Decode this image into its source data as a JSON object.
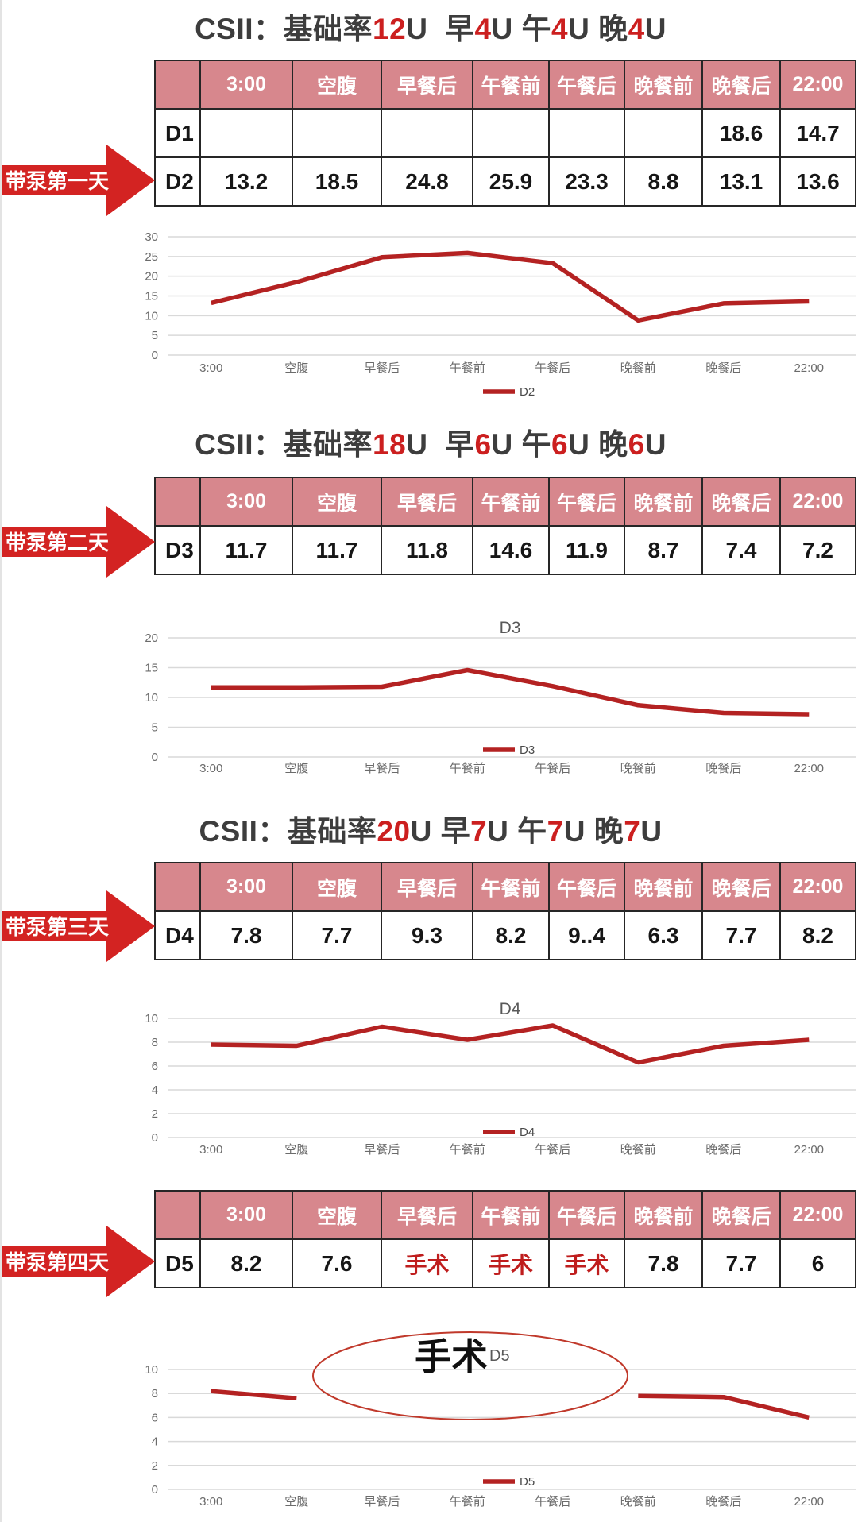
{
  "colors": {
    "accent_red": "#cc1f1f",
    "arrow_red": "#d32322",
    "header_pink": "#d7878d",
    "table_border": "#262626",
    "line_red": "#b42222",
    "surgery_red": "#bf1d1d",
    "grid_gray": "#d9d9d9",
    "tick_gray": "#6b6b6b",
    "chart_title_gray": "#595959",
    "oval_red": "#c0392b",
    "title_dark": "#3d3d3d"
  },
  "arrows": [
    {
      "label": "带泵第一天"
    },
    {
      "label": "带泵第二天"
    },
    {
      "label": "带泵第三天"
    },
    {
      "label": "带泵第四天"
    }
  ],
  "sections": [
    {
      "title_parts": [
        {
          "t": "CSII：基础率"
        },
        {
          "t": "12",
          "red": true
        },
        {
          "t": "U  早"
        },
        {
          "t": "4",
          "red": true
        },
        {
          "t": "U 午"
        },
        {
          "t": "4",
          "red": true
        },
        {
          "t": "U 晚"
        },
        {
          "t": "4",
          "red": true
        },
        {
          "t": "U"
        }
      ],
      "table": {
        "headers": [
          "",
          "3:00",
          "空腹",
          "早餐后",
          "午餐前",
          "午餐后",
          "晚餐前",
          "晚餐后",
          "22:00"
        ],
        "rows": [
          {
            "label": "D1",
            "values": [
              "",
              "",
              "",
              "",
              "",
              "",
              "18.6",
              "14.7"
            ],
            "red_indices": []
          },
          {
            "label": "D2",
            "values": [
              "13.2",
              "18.5",
              "24.8",
              "25.9",
              "23.3",
              "8.8",
              "13.1",
              "13.6"
            ],
            "red_indices": []
          }
        ]
      }
    },
    {
      "title_parts": [
        {
          "t": "CSII：基础率"
        },
        {
          "t": "18",
          "red": true
        },
        {
          "t": "U  早"
        },
        {
          "t": "6",
          "red": true
        },
        {
          "t": "U 午"
        },
        {
          "t": "6",
          "red": true
        },
        {
          "t": "U 晚"
        },
        {
          "t": "6",
          "red": true
        },
        {
          "t": "U"
        }
      ],
      "table": {
        "headers": [
          "",
          "3:00",
          "空腹",
          "早餐后",
          "午餐前",
          "午餐后",
          "晚餐前",
          "晚餐后",
          "22:00"
        ],
        "rows": [
          {
            "label": "D3",
            "values": [
              "11.7",
              "11.7",
              "11.8",
              "14.6",
              "11.9",
              "8.7",
              "7.4",
              "7.2"
            ],
            "red_indices": []
          }
        ]
      }
    },
    {
      "title_parts": [
        {
          "t": "CSII：基础率"
        },
        {
          "t": "20",
          "red": true
        },
        {
          "t": "U 早"
        },
        {
          "t": "7",
          "red": true
        },
        {
          "t": "U 午"
        },
        {
          "t": "7",
          "red": true
        },
        {
          "t": "U 晚"
        },
        {
          "t": "7",
          "red": true
        },
        {
          "t": "U"
        }
      ],
      "table": {
        "headers": [
          "",
          "3:00",
          "空腹",
          "早餐后",
          "午餐前",
          "午餐后",
          "晚餐前",
          "晚餐后",
          "22:00"
        ],
        "rows": [
          {
            "label": "D4",
            "values": [
              "7.8",
              "7.7",
              "9.3",
              "8.2",
              "9..4",
              "6.3",
              "7.7",
              "8.2"
            ],
            "red_indices": []
          }
        ]
      }
    },
    {
      "title_parts": [],
      "table": {
        "headers": [
          "",
          "3:00",
          "空腹",
          "早餐后",
          "午餐前",
          "午餐后",
          "晚餐前",
          "晚餐后",
          "22:00"
        ],
        "rows": [
          {
            "label": "D5",
            "values": [
              "8.2",
              "7.6",
              "手术",
              "手术",
              "手术",
              "7.8",
              "7.7",
              "6"
            ],
            "red_indices": [
              2,
              3,
              4
            ]
          }
        ]
      }
    }
  ],
  "chart_data": [
    {
      "type": "line",
      "title": "",
      "title_pos": "none",
      "categories": [
        "3:00",
        "空腹",
        "早餐后",
        "午餐前",
        "午餐后",
        "晚餐前",
        "晚餐后",
        "22:00"
      ],
      "series": [
        {
          "name": "D2",
          "values": [
            13.2,
            18.5,
            24.8,
            25.9,
            23.3,
            8.8,
            13.1,
            13.6
          ]
        }
      ],
      "ylim": [
        0,
        30
      ],
      "ytick_step": 5,
      "grid": true,
      "legend_position": "below"
    },
    {
      "type": "line",
      "title": "D3",
      "title_pos": "top",
      "categories": [
        "3:00",
        "空腹",
        "早餐后",
        "午餐前",
        "午餐后",
        "晚餐前",
        "晚餐后",
        "22:00"
      ],
      "series": [
        {
          "name": "D3",
          "values": [
            11.7,
            11.7,
            11.8,
            14.6,
            11.9,
            8.7,
            7.4,
            7.2
          ]
        }
      ],
      "ylim": [
        0,
        20
      ],
      "ytick_step": 5,
      "grid": true,
      "legend_position": "inside"
    },
    {
      "type": "line",
      "title": "D4",
      "title_pos": "top",
      "categories": [
        "3:00",
        "空腹",
        "早餐后",
        "午餐前",
        "午餐后",
        "晚餐前",
        "晚餐后",
        "22:00"
      ],
      "series": [
        {
          "name": "D4",
          "values": [
            7.8,
            7.7,
            9.3,
            8.2,
            9.4,
            6.3,
            7.7,
            8.2
          ]
        }
      ],
      "ylim": [
        0,
        10
      ],
      "ytick_step": 2,
      "grid": true,
      "legend_position": "inside"
    },
    {
      "type": "line",
      "title": "D5",
      "title_pos": "annotation",
      "categories": [
        "3:00",
        "空腹",
        "早餐后",
        "午餐前",
        "午餐后",
        "晚餐前",
        "晚餐后",
        "22:00"
      ],
      "series": [
        {
          "name": "D5",
          "values": [
            8.2,
            7.6,
            null,
            null,
            null,
            7.8,
            7.7,
            6
          ]
        }
      ],
      "ylim": [
        0,
        10
      ],
      "ytick_step": 2,
      "grid": true,
      "legend_position": "inside",
      "annotation": {
        "shape": "ellipse",
        "label": "手术"
      }
    }
  ]
}
